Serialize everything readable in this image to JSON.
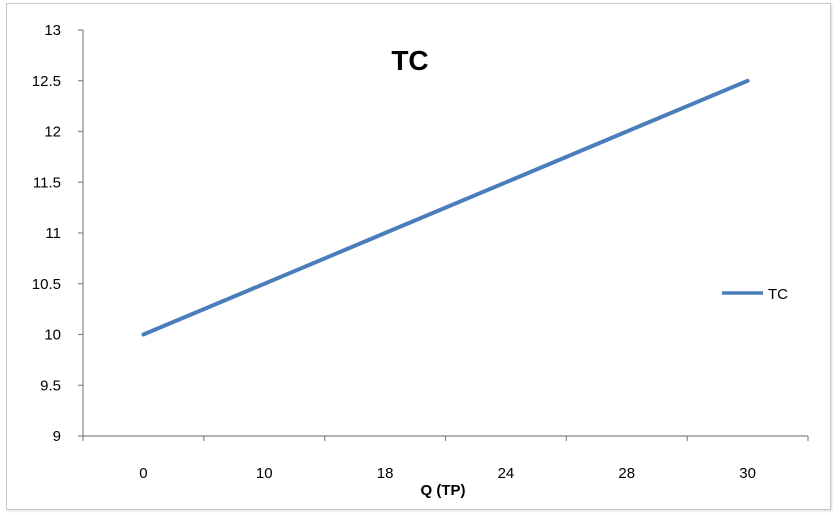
{
  "chart_data": {
    "type": "line",
    "title": "TC",
    "xlabel": "Q (TP)",
    "ylabel": "",
    "categories": [
      "0",
      "10",
      "18",
      "24",
      "28",
      "30"
    ],
    "series": [
      {
        "name": "TC",
        "color": "#4a7ebb",
        "values": [
          10,
          10.5,
          11,
          11.5,
          12,
          12.5
        ]
      }
    ],
    "ylim": [
      9,
      13
    ],
    "yticks": [
      "9",
      "9.5",
      "10",
      "10.5",
      "11",
      "11.5",
      "12",
      "12.5",
      "13"
    ],
    "grid": false,
    "legend_position": "right"
  }
}
